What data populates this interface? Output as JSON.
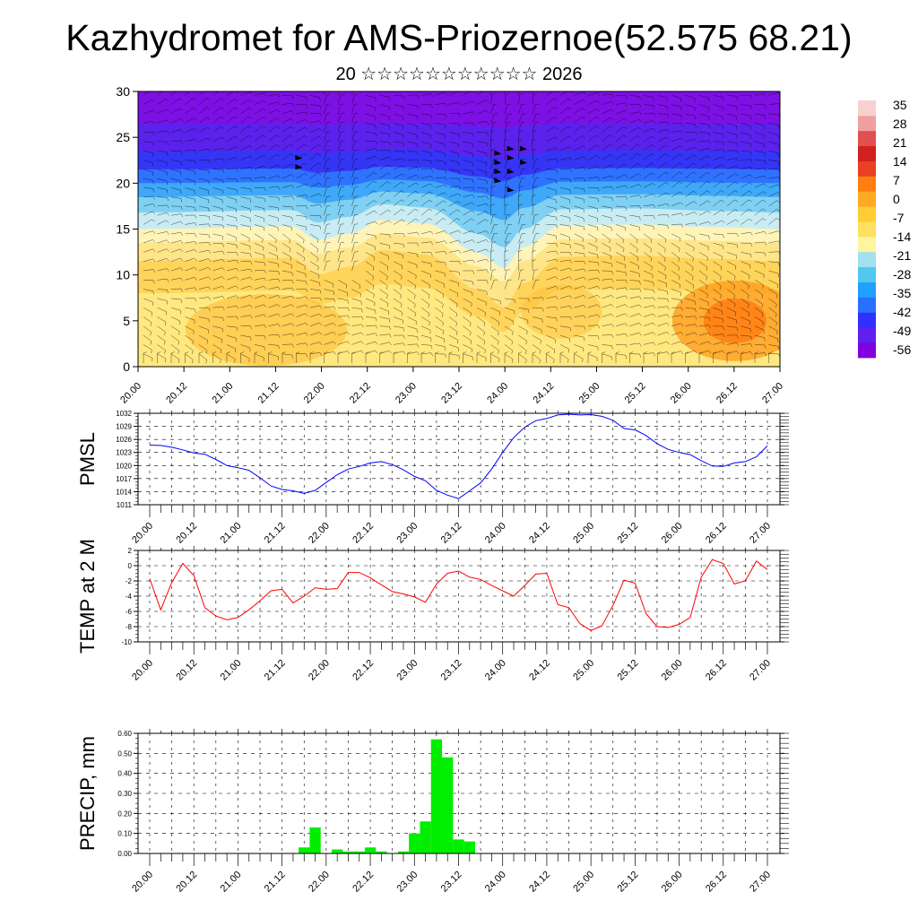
{
  "title": "Kazhydromet for AMS-Priozernoe(52.575 68.21)",
  "subtitle": "20 ☆☆☆☆☆☆☆☆☆☆☆ 2026",
  "colors": {
    "pmsl": "#0000ff",
    "temp": "#ff0000",
    "precip": "#00ee00"
  },
  "chart_data": [
    {
      "type": "heatmap",
      "title": "",
      "ylim": [
        0,
        30
      ],
      "yticks": [
        "0",
        "5",
        "10",
        "15",
        "20",
        "25",
        "30"
      ],
      "xticks": [
        "20.00",
        "20.12",
        "21.00",
        "21.12",
        "22.00",
        "22.12",
        "23.00",
        "23.12",
        "24.00",
        "24.12",
        "25.00",
        "25.12",
        "26.00",
        "26.12",
        "27.00"
      ],
      "colorbar": {
        "labels": [
          "35",
          "28",
          "21",
          "14",
          "7",
          "0",
          "-7",
          "-14",
          "-21",
          "-28",
          "-35",
          "-42",
          "-49",
          "-56"
        ],
        "colors": [
          "#8000e0",
          "#6020f0",
          "#3030ff",
          "#2a70ff",
          "#20a0ff",
          "#50c8f0",
          "#a0e0f0",
          "#fff5a0",
          "#ffe060",
          "#ffcc33",
          "#ffaa22",
          "#ff8010",
          "#e84020",
          "#d02020",
          "#e05050",
          "#f0a0a0",
          "#f8d0d0"
        ]
      }
    },
    {
      "type": "line",
      "ylabel": "PMSL",
      "yticks": [
        "1011",
        "1014",
        "1017",
        "1020",
        "1023",
        "1026",
        "1029",
        "1032"
      ],
      "ylim": [
        1011,
        1032
      ],
      "xticks": [
        "20.00",
        "20.12",
        "21.00",
        "21.12",
        "22.00",
        "22.12",
        "23.00",
        "23.12",
        "24.00",
        "24.12",
        "25.00",
        "25.12",
        "26.00",
        "26.12",
        "27.00"
      ],
      "x": [
        0,
        0.125,
        0.25,
        0.375,
        0.5,
        0.625,
        0.75,
        0.875,
        1,
        1.125,
        1.25,
        1.375,
        1.5,
        1.625,
        1.75,
        1.875,
        2,
        2.125,
        2.25,
        2.375,
        2.5,
        2.625,
        2.75,
        2.875,
        3,
        3.125,
        3.25,
        3.375,
        3.5,
        3.625,
        3.75,
        3.875,
        4,
        4.125,
        4.25,
        4.375,
        4.5,
        4.625,
        4.75,
        4.875,
        5,
        5.125,
        5.25,
        5.375,
        5.5,
        5.625,
        5.75,
        5.875,
        6,
        6.125,
        6.25,
        6.375,
        6.5,
        6.625,
        6.75,
        6.875,
        7
      ],
      "values": [
        1024.7,
        1024.6,
        1024.2,
        1023.6,
        1022.9,
        1022.6,
        1021.4,
        1020.0,
        1019.5,
        1018.9,
        1017.2,
        1015.3,
        1014.5,
        1014.2,
        1013.6,
        1014.3,
        1016.1,
        1017.9,
        1019.2,
        1019.8,
        1020.6,
        1020.9,
        1020.2,
        1019.0,
        1017.5,
        1016.5,
        1014.3,
        1013.2,
        1012.4,
        1014.2,
        1016.0,
        1019.2,
        1023.0,
        1026.4,
        1028.8,
        1030.3,
        1030.8,
        1031.6,
        1031.8,
        1031.6,
        1031.7,
        1031.3,
        1030.4,
        1028.5,
        1028.2,
        1026.9,
        1025.0,
        1023.7,
        1023.0,
        1022.5,
        1021.1,
        1019.9,
        1019.8,
        1020.6,
        1020.9,
        1022.0,
        1024.5
      ]
    },
    {
      "type": "line",
      "ylabel": "TEMP at 2 M",
      "yticks": [
        "-10",
        "-8",
        "-6",
        "-4",
        "-2",
        "0",
        "2"
      ],
      "ylim": [
        -10,
        2
      ],
      "xticks": [
        "20.00",
        "20.12",
        "21.00",
        "21.12",
        "22.00",
        "22.12",
        "23.00",
        "23.12",
        "24.00",
        "24.12",
        "25.00",
        "25.12",
        "26.00",
        "26.12",
        "27.00"
      ],
      "x": [
        0,
        0.125,
        0.25,
        0.375,
        0.5,
        0.625,
        0.75,
        0.875,
        1,
        1.125,
        1.25,
        1.375,
        1.5,
        1.625,
        1.75,
        1.875,
        2,
        2.125,
        2.25,
        2.375,
        2.5,
        2.625,
        2.75,
        2.875,
        3,
        3.125,
        3.25,
        3.375,
        3.5,
        3.625,
        3.75,
        3.875,
        4,
        4.125,
        4.25,
        4.375,
        4.5,
        4.625,
        4.75,
        4.875,
        5,
        5.125,
        5.25,
        5.375,
        5.5,
        5.625,
        5.75,
        5.875,
        6,
        6.125,
        6.25,
        6.375,
        6.5,
        6.625,
        6.75,
        6.875,
        7
      ],
      "values": [
        -1.7,
        -5.8,
        -2.2,
        0.3,
        -1.3,
        -5.5,
        -6.6,
        -7.1,
        -6.8,
        -5.8,
        -4.6,
        -3.3,
        -3.1,
        -4.9,
        -4.0,
        -2.9,
        -3.1,
        -3.0,
        -0.9,
        -0.9,
        -1.6,
        -2.5,
        -3.4,
        -3.7,
        -4.1,
        -4.8,
        -2.4,
        -1.0,
        -0.7,
        -1.5,
        -1.8,
        -2.6,
        -3.3,
        -4.0,
        -2.6,
        -1.1,
        -1.0,
        -5.1,
        -5.5,
        -7.6,
        -8.5,
        -7.9,
        -5.2,
        -1.9,
        -2.3,
        -6.3,
        -8.0,
        -8.1,
        -7.7,
        -6.8,
        -1.5,
        0.8,
        0.3,
        -2.4,
        -2.0,
        0.6,
        -0.5
      ]
    },
    {
      "type": "bar",
      "ylabel": "PRECIP, mm",
      "yticks": [
        "0.00",
        "0.10",
        "0.20",
        "0.30",
        "0.40",
        "0.50",
        "0.60"
      ],
      "ylim": [
        0,
        0.6
      ],
      "xticks": [
        "20.00",
        "20.12",
        "21.00",
        "21.12",
        "22.00",
        "22.12",
        "23.00",
        "23.12",
        "24.00",
        "24.12",
        "25.00",
        "25.12",
        "26.00",
        "26.12",
        "27.00"
      ],
      "x": [
        1.75,
        1.875,
        2.125,
        2.25,
        2.375,
        2.5,
        2.625,
        2.75,
        2.875,
        3.0,
        3.125,
        3.25,
        3.375,
        3.5,
        3.625,
        3.75
      ],
      "values": [
        0.03,
        0.13,
        0.02,
        0.01,
        0.01,
        0.03,
        0.01,
        0.0,
        0.01,
        0.1,
        0.16,
        0.57,
        0.48,
        0.07,
        0.06,
        0.0
      ]
    }
  ]
}
